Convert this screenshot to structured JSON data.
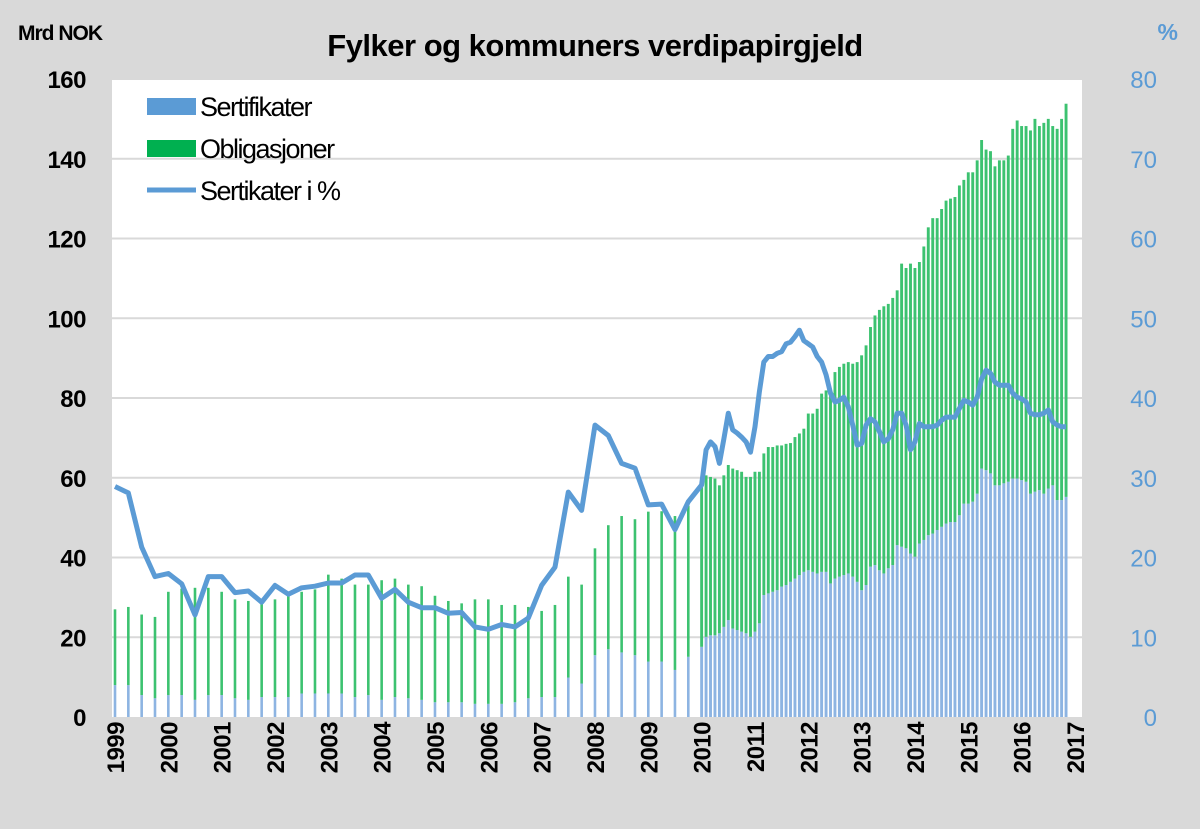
{
  "chart_data": {
    "type": "bar",
    "stacked": true,
    "title": "Fylker og kommuners verdipapirgjeld",
    "ylabel": "Mrd NOK",
    "y2label": "%",
    "ylim": [
      0,
      160
    ],
    "y2lim": [
      0,
      80
    ],
    "yticks": [
      "0",
      "20",
      "40",
      "60",
      "80",
      "100",
      "120",
      "140",
      "160"
    ],
    "y2ticks": [
      "0",
      "10",
      "20",
      "30",
      "40",
      "50",
      "60",
      "70",
      "80"
    ],
    "xticks": [
      "1999",
      "2000",
      "2001",
      "2002",
      "2003",
      "2004",
      "2005",
      "2006",
      "2007",
      "2008",
      "2009",
      "2010",
      "2011",
      "2012",
      "2013",
      "2014",
      "2015",
      "2016",
      "2017"
    ],
    "grid": true,
    "legend_position": "top-left",
    "legend": [
      "Sertifikater",
      "Obligasjoner",
      "Sertikater i %"
    ],
    "colors": {
      "sertifikater": "#8db4e2",
      "sertifikater_legend": "#5b9bd5",
      "obligasjoner": "#3cc270",
      "obligasjoner_legend": "#00b050",
      "line": "#5b9bd5",
      "right_axis": "#5b9bd5"
    },
    "quarterly": {
      "start": "1999Q1",
      "sertifikater": [
        8.0,
        8.0,
        5.5,
        4.7,
        5.5,
        5.5,
        4.3,
        5.5,
        5.5,
        4.7,
        4.3,
        5.0,
        5.0,
        5.0,
        5.9,
        5.9,
        5.9,
        5.9,
        5.0,
        5.5,
        4.3,
        5.0,
        4.7,
        4.3,
        3.7,
        3.7,
        3.7,
        3.3,
        3.3,
        3.3,
        3.7,
        4.7,
        5.0,
        5.0,
        9.9,
        8.4,
        15.5,
        17.0,
        16.2,
        15.5,
        13.9,
        13.9,
        11.8,
        15.1
      ],
      "obligasjoner": [
        19.0,
        19.6,
        20.2,
        20.4,
        25.9,
        26.7,
        28.1,
        26.9,
        25.9,
        24.8,
        24.8,
        23.5,
        24.5,
        25.6,
        25.5,
        26.1,
        29.8,
        28.8,
        28.2,
        27.7,
        30.0,
        29.7,
        28.5,
        28.5,
        26.7,
        25.4,
        24.8,
        26.2,
        26.2,
        24.8,
        24.4,
        22.9,
        21.6,
        23.1,
        25.3,
        24.8,
        26.8,
        31.1,
        34.2,
        34.1,
        37.6,
        37.7,
        38.6,
        37.9
      ],
      "sertifikater_pct": [
        28.9,
        28.1,
        21.3,
        17.6,
        18.0,
        16.7,
        12.8,
        17.6,
        17.6,
        15.6,
        15.8,
        14.4,
        16.5,
        15.4,
        16.2,
        16.4,
        16.8,
        16.8,
        17.8,
        17.8,
        14.9,
        16.0,
        14.4,
        13.7,
        13.7,
        13.0,
        13.1,
        11.3,
        11.0,
        11.6,
        11.3,
        12.4,
        16.5,
        18.8,
        28.2,
        25.9,
        36.6,
        35.3,
        31.8,
        31.2,
        26.6,
        26.7,
        23.5,
        27.0
      ]
    },
    "monthly": {
      "start": "2010-01",
      "sertifikater": [
        17.6,
        20.1,
        20.5,
        20.5,
        21.0,
        22.6,
        24.3,
        22.2,
        21.8,
        21.4,
        21.0,
        20.1,
        21.4,
        23.5,
        30.6,
        31.0,
        31.4,
        31.8,
        32.7,
        33.1,
        33.9,
        34.7,
        35.6,
        36.4,
        36.8,
        36.4,
        36.0,
        36.4,
        36.4,
        33.5,
        34.7,
        35.2,
        35.6,
        36.0,
        35.2,
        33.9,
        31.8,
        33.1,
        37.7,
        38.1,
        36.8,
        36.0,
        37.3,
        38.1,
        43.1,
        42.7,
        42.3,
        41.0,
        40.2,
        43.5,
        44.4,
        45.6,
        46.0,
        46.9,
        47.7,
        48.5,
        48.9,
        48.9,
        50.6,
        53.5,
        53.5,
        54.0,
        56.0,
        62.3,
        61.9,
        61.1,
        58.1,
        58.1,
        58.6,
        59.0,
        59.8,
        59.8,
        59.4,
        59.0,
        56.0,
        56.5,
        56.9,
        56.0,
        57.3,
        58.1,
        54.4,
        54.4,
        55.2
      ],
      "obligasjoner": [
        42.2,
        40.5,
        39.7,
        39.3,
        37.1,
        38.0,
        38.9,
        40.1,
        40.1,
        40.1,
        39.2,
        40.1,
        40.1,
        38.0,
        35.5,
        36.7,
        36.3,
        36.3,
        35.4,
        35.4,
        34.8,
        35.5,
        35.5,
        35.9,
        39.3,
        39.7,
        41.3,
        44.7,
        45.5,
        48.9,
        51.8,
        52.6,
        53.0,
        53.0,
        53.4,
        55.1,
        58.9,
        60.1,
        60.1,
        62.6,
        65.3,
        67.0,
        66.3,
        67.0,
        63.9,
        71.0,
        70.3,
        72.7,
        72.4,
        70.6,
        73.6,
        77.2,
        79.1,
        78.2,
        79.7,
        81.0,
        81.1,
        81.5,
        82.7,
        81.2,
        83.1,
        82.6,
        83.6,
        82.4,
        80.4,
        80.8,
        80.0,
        81.5,
        81.0,
        81.8,
        87.7,
        89.8,
        88.8,
        89.2,
        91.1,
        93.5,
        91.3,
        93.0,
        92.7,
        90.1,
        93.1,
        95.6,
        98.6
      ],
      "sertifikater_pct": [
        29.1,
        33.5,
        34.5,
        33.9,
        31.8,
        34.9,
        38.1,
        36.0,
        35.6,
        35.1,
        34.5,
        33.2,
        36.4,
        40.8,
        44.5,
        45.2,
        45.2,
        45.6,
        45.8,
        46.8,
        47.0,
        47.7,
        48.5,
        47.2,
        46.8,
        46.4,
        45.2,
        44.5,
        42.9,
        40.6,
        39.5,
        39.7,
        40.1,
        38.9,
        36.6,
        34.1,
        34.3,
        36.6,
        37.4,
        37.0,
        35.8,
        34.5,
        34.9,
        36.0,
        38.1,
        38.1,
        36.6,
        33.5,
        34.5,
        36.8,
        36.4,
        36.4,
        36.4,
        36.6,
        37.2,
        37.6,
        37.6,
        37.6,
        38.7,
        39.7,
        39.5,
        39.1,
        40.1,
        42.4,
        43.5,
        43.1,
        42.0,
        41.6,
        41.6,
        41.6,
        40.6,
        40.1,
        39.9,
        39.5,
        38.1,
        37.9,
        37.9,
        38.1,
        38.5,
        37.0,
        36.6,
        36.4,
        36.4
      ]
    }
  }
}
